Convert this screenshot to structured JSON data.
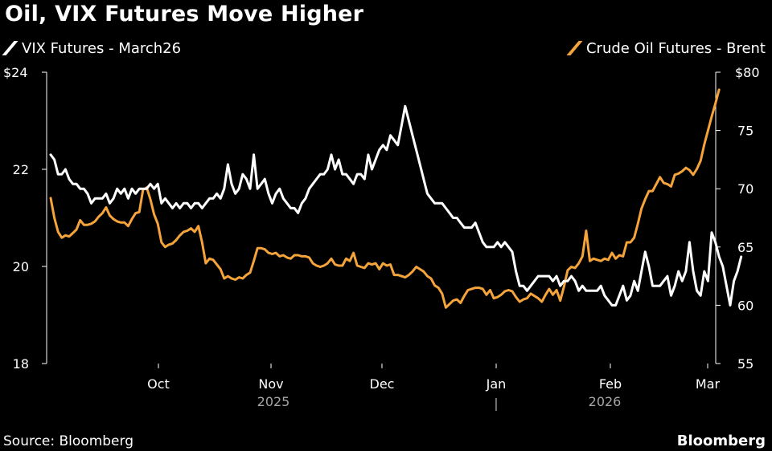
{
  "title": "Oil, VIX Futures Move Higher",
  "legend": {
    "left_label": "VIX Futures - March26",
    "right_label": "Crude Oil Futures - Brent"
  },
  "footer": {
    "source": "Source: Bloomberg",
    "brand": "Bloomberg"
  },
  "colors": {
    "background": "#000000",
    "vix": "#ffffff",
    "brent": "#f5a33b",
    "axis": "#ffffff"
  },
  "chart_data": {
    "type": "line",
    "title": "Oil, VIX Futures Move Higher",
    "x_axis": {
      "ticks": [
        "Oct",
        "Nov",
        "Dec",
        "Jan",
        "Feb",
        "Mar"
      ],
      "year_labels": [
        "2025",
        "2026"
      ],
      "year_separator": "|",
      "points": 180
    },
    "y_left": {
      "label": "VIX Futures - March26",
      "range": [
        18,
        24
      ],
      "ticks": [
        "$24",
        "22",
        "20",
        "18"
      ],
      "tick_values": [
        24,
        22,
        20,
        18
      ]
    },
    "y_right": {
      "label": "Crude Oil Futures - Brent",
      "range": [
        55,
        80
      ],
      "ticks": [
        "$80",
        "75",
        "70",
        "65",
        "60",
        "55"
      ],
      "tick_values": [
        80,
        75,
        70,
        65,
        60,
        55
      ]
    },
    "series": [
      {
        "name": "VIX Futures - March26",
        "axis": "left",
        "color": "#ffffff",
        "values": [
          22.3,
          22.2,
          21.9,
          21.9,
          22.0,
          21.8,
          21.7,
          21.7,
          21.6,
          21.6,
          21.5,
          21.3,
          21.4,
          21.4,
          21.4,
          21.5,
          21.3,
          21.4,
          21.6,
          21.5,
          21.6,
          21.4,
          21.6,
          21.5,
          21.6,
          21.6,
          21.6,
          21.7,
          21.6,
          21.7,
          21.3,
          21.4,
          21.3,
          21.2,
          21.3,
          21.2,
          21.3,
          21.3,
          21.2,
          21.3,
          21.3,
          21.2,
          21.3,
          21.4,
          21.4,
          21.5,
          21.4,
          21.6,
          22.1,
          21.7,
          21.5,
          21.6,
          21.9,
          21.8,
          21.6,
          22.3,
          21.6,
          21.7,
          21.8,
          21.5,
          21.3,
          21.5,
          21.6,
          21.4,
          21.3,
          21.2,
          21.2,
          21.1,
          21.3,
          21.4,
          21.6,
          21.7,
          21.8,
          21.9,
          21.9,
          22.0,
          22.3,
          22.0,
          22.2,
          21.9,
          21.9,
          21.8,
          21.7,
          21.9,
          21.9,
          21.8,
          22.3,
          22.0,
          22.2,
          22.4,
          22.5,
          22.4,
          22.7,
          22.6,
          22.5,
          22.9,
          23.3,
          23.0,
          22.7,
          22.4,
          22.1,
          21.8,
          21.5,
          21.4,
          21.3,
          21.3,
          21.3,
          21.2,
          21.1,
          21.0,
          21.0,
          20.9,
          20.8,
          20.8,
          20.8,
          20.9,
          20.7,
          20.5,
          20.4,
          20.4,
          20.4,
          20.5,
          20.4,
          20.5,
          20.4,
          20.3,
          19.9,
          19.6,
          19.6,
          19.5,
          19.6,
          19.7,
          19.8,
          19.8,
          19.8,
          19.8,
          19.7,
          19.8,
          19.6,
          19.7,
          19.7,
          19.8,
          19.7,
          19.5,
          19.6,
          19.5,
          19.5,
          19.5,
          19.5,
          19.6,
          19.4,
          19.3,
          19.2,
          19.2,
          19.4,
          19.6,
          19.3,
          19.4,
          19.7,
          19.5,
          19.9,
          20.3,
          20.0,
          19.6,
          19.6,
          19.6,
          19.7,
          19.8,
          19.4,
          19.6,
          19.9,
          19.7,
          19.9,
          20.5,
          19.9,
          19.5,
          19.4,
          19.9,
          19.7,
          20.7,
          20.5,
          20.2,
          20.0,
          19.6,
          19.2,
          19.7,
          19.9,
          20.2
        ]
      },
      {
        "name": "Crude Oil Futures - Brent",
        "axis": "right",
        "color": "#f5a33b",
        "values": [
          69.2,
          67.5,
          66.3,
          65.8,
          66.0,
          65.9,
          66.2,
          66.5,
          67.3,
          66.9,
          66.9,
          67.0,
          67.2,
          67.6,
          67.9,
          68.4,
          67.7,
          67.4,
          67.2,
          67.1,
          67.1,
          66.8,
          67.4,
          67.9,
          68.0,
          69.9,
          70.1,
          69.1,
          67.8,
          67.0,
          65.4,
          65.0,
          65.2,
          65.3,
          65.6,
          66.0,
          66.3,
          66.4,
          66.6,
          66.3,
          66.8,
          65.4,
          63.6,
          64.0,
          63.9,
          63.5,
          63.1,
          62.3,
          62.5,
          62.3,
          62.2,
          62.4,
          62.3,
          62.6,
          62.8,
          63.8,
          64.9,
          64.9,
          64.8,
          64.5,
          64.4,
          64.5,
          64.2,
          64.3,
          64.1,
          64.0,
          64.3,
          64.3,
          64.2,
          64.2,
          64.1,
          63.6,
          63.4,
          63.3,
          63.4,
          63.6,
          64.0,
          63.5,
          63.4,
          63.4,
          64.0,
          63.8,
          64.5,
          63.4,
          63.3,
          63.2,
          63.6,
          63.5,
          63.6,
          63.1,
          63.6,
          63.4,
          63.5,
          62.6,
          62.6,
          62.5,
          62.4,
          62.6,
          62.9,
          63.3,
          63.1,
          62.9,
          62.5,
          62.3,
          61.7,
          61.5,
          61.0,
          59.8,
          60.1,
          60.4,
          60.5,
          60.2,
          60.8,
          61.3,
          61.4,
          61.5,
          61.5,
          61.4,
          60.9,
          61.3,
          60.6,
          60.7,
          60.9,
          61.2,
          61.3,
          61.2,
          60.7,
          60.3,
          60.5,
          60.6,
          61.0,
          60.8,
          60.6,
          60.3,
          60.9,
          61.4,
          60.9,
          61.3,
          60.4,
          61.6,
          63.0,
          63.3,
          63.2,
          63.6,
          64.2,
          66.4,
          63.8,
          64.0,
          63.9,
          63.8,
          64.0,
          63.9,
          64.5,
          64.0,
          64.3,
          64.2,
          65.4,
          65.4,
          65.8,
          67.0,
          68.3,
          69.1,
          69.8,
          69.8,
          70.4,
          71.0,
          70.5,
          70.4,
          70.2,
          71.2,
          71.3,
          71.5,
          71.8,
          71.6,
          71.2,
          71.7,
          72.4,
          73.8,
          75.0,
          76.2,
          77.3,
          78.5
        ]
      }
    ]
  }
}
